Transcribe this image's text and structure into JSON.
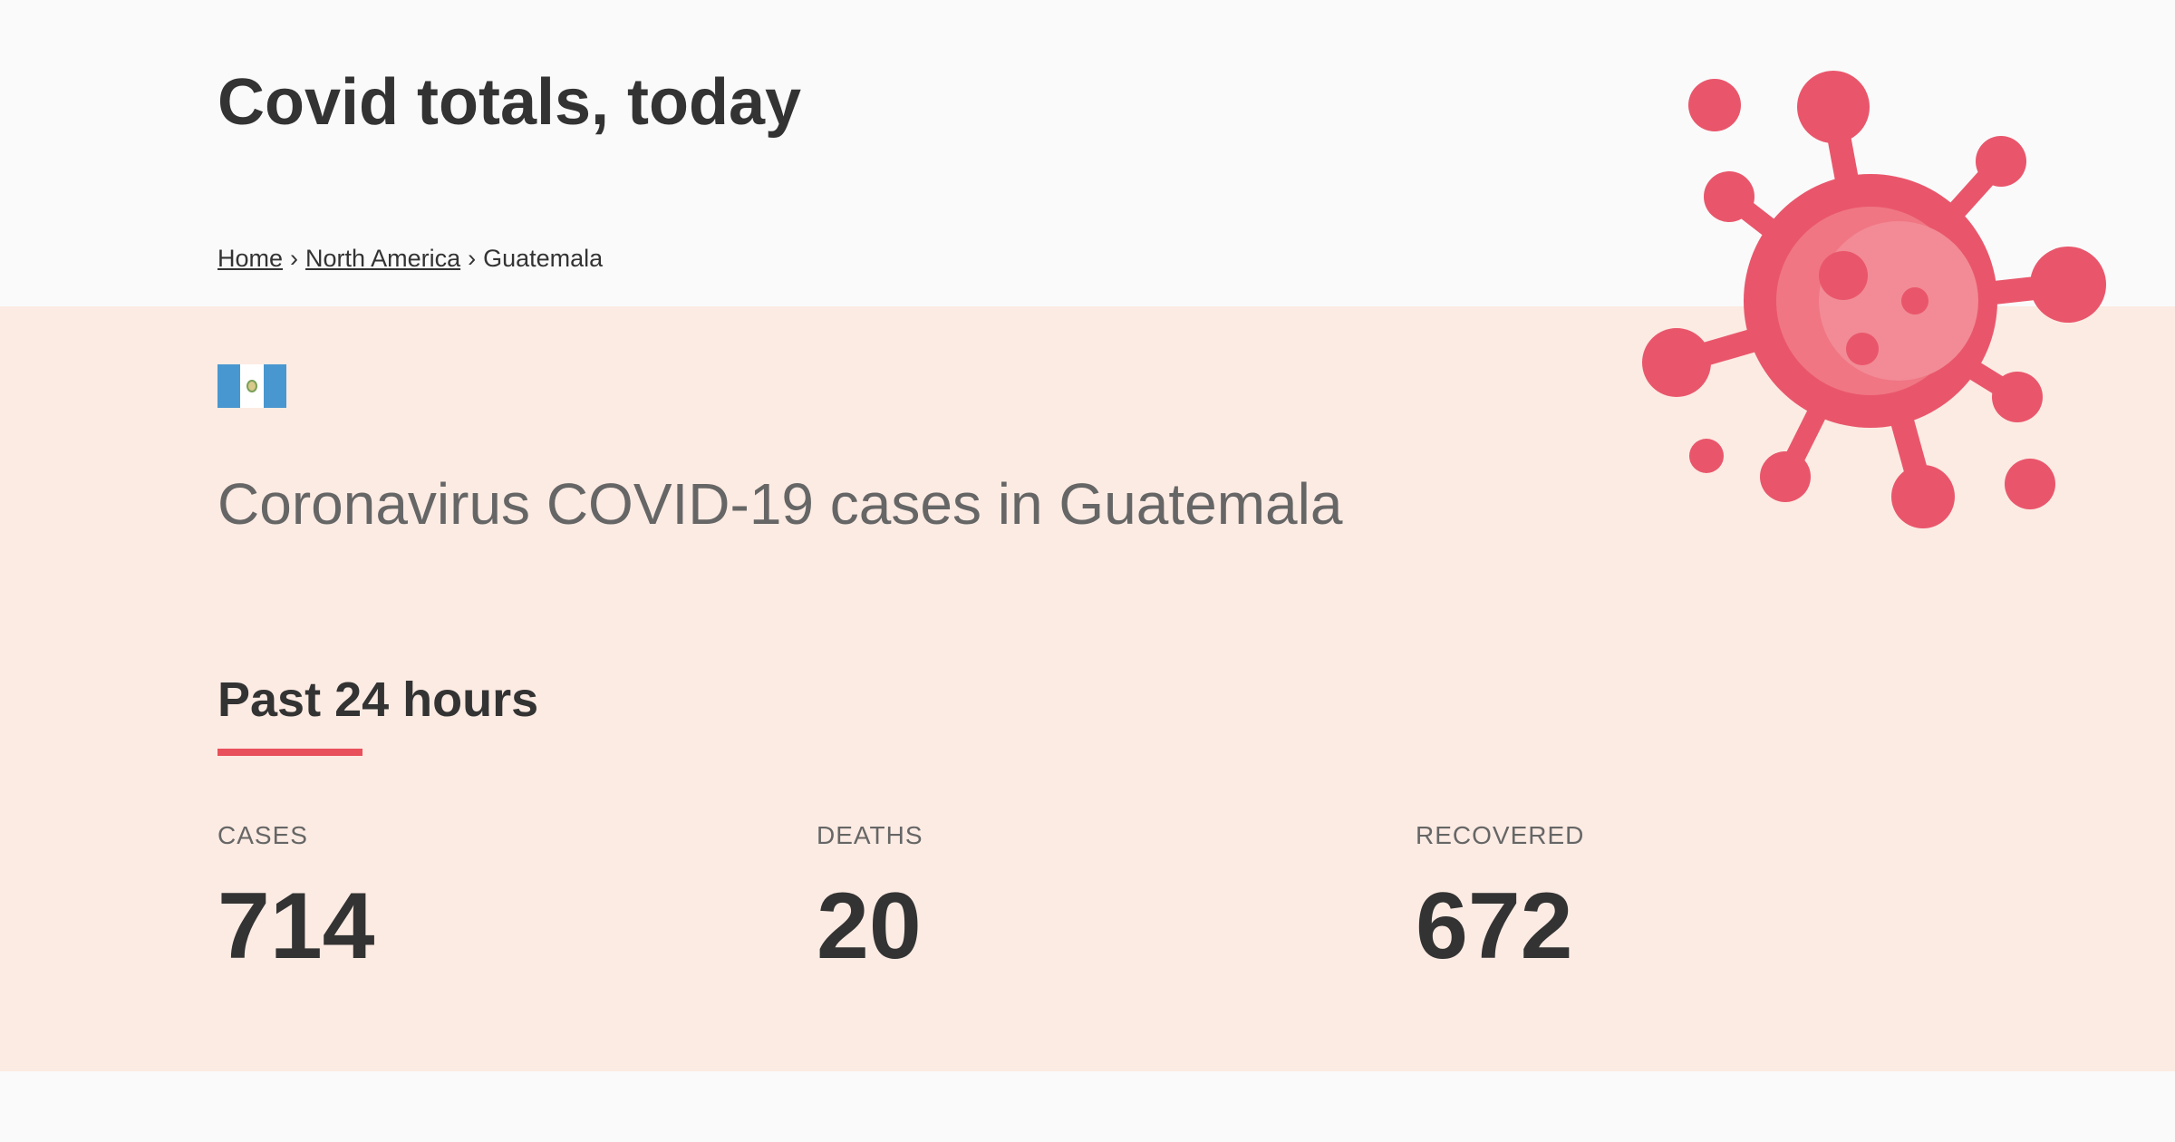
{
  "header": {
    "site_title": "Covid totals, today"
  },
  "breadcrumb": {
    "home": "Home",
    "region": "North America",
    "current": "Guatemala",
    "separator": "›"
  },
  "main": {
    "flag_icon": "guatemala-flag-icon",
    "heading": "Coronavirus COVID-19 cases in Guatemala",
    "section_title": "Past 24 hours",
    "stats": {
      "cases": {
        "label": "CASES",
        "value": "714"
      },
      "deaths": {
        "label": "DEATHS",
        "value": "20"
      },
      "recovered": {
        "label": "RECOVERED",
        "value": "672"
      }
    }
  },
  "decor": {
    "virus_icon": "coronavirus-icon"
  },
  "colors": {
    "accent": "#e8505b",
    "virus": "#e9566b",
    "virus_light": "#f28b95",
    "band_bg": "#fcebe3",
    "page_bg": "#fafafa",
    "text": "#333333",
    "muted_text": "#666666"
  }
}
